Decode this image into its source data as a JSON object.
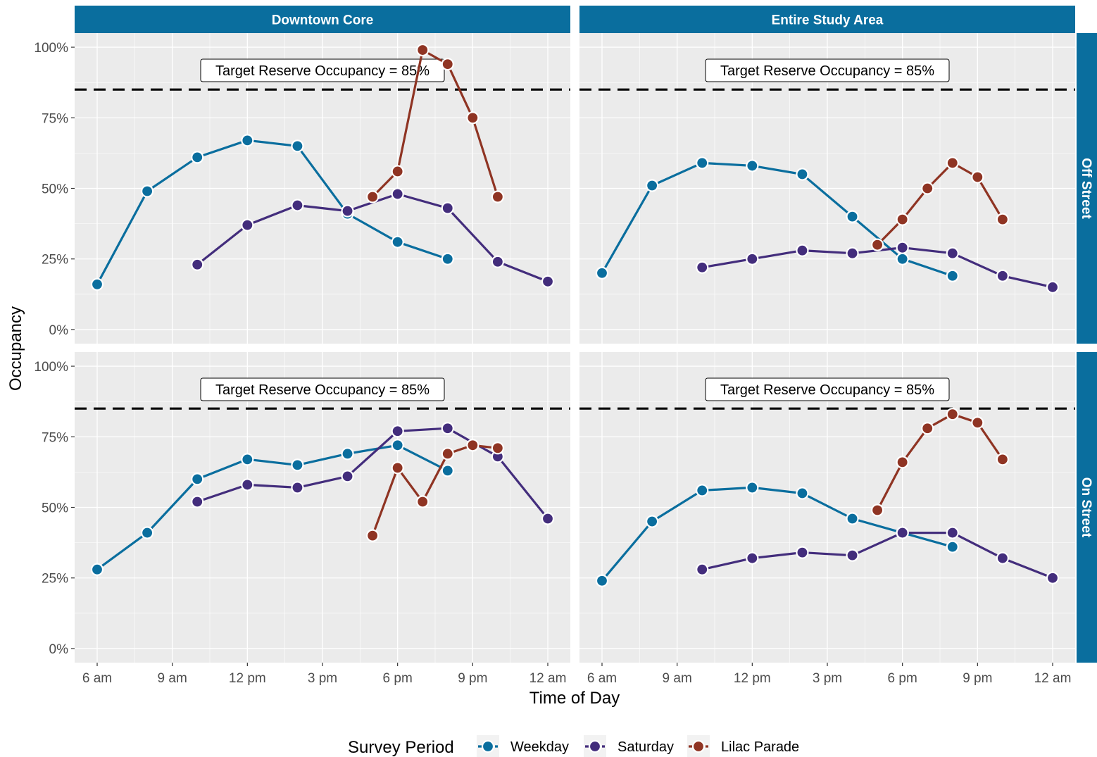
{
  "chart_data": {
    "type": "line",
    "x_axis_label": "Time of Day",
    "y_axis_label": "Occupancy",
    "x_ticks": [
      {
        "hour": 6,
        "label": "6 am"
      },
      {
        "hour": 9,
        "label": "9 am"
      },
      {
        "hour": 12,
        "label": "12 pm"
      },
      {
        "hour": 15,
        "label": "3 pm"
      },
      {
        "hour": 18,
        "label": "6 pm"
      },
      {
        "hour": 21,
        "label": "9 pm"
      },
      {
        "hour": 24,
        "label": "12 am"
      }
    ],
    "y_ticks": [
      {
        "value": 0,
        "label": "0%"
      },
      {
        "value": 25,
        "label": "25%"
      },
      {
        "value": 50,
        "label": "50%"
      },
      {
        "value": 75,
        "label": "75%"
      },
      {
        "value": 100,
        "label": "100%"
      }
    ],
    "x_range": [
      5.1,
      24.9
    ],
    "y_range": [
      -5,
      105
    ],
    "grid": true,
    "reference_line": {
      "value": 85,
      "style": "dashed",
      "label": "Target Reserve Occupancy = 85%"
    },
    "column_facets": [
      "Downtown Core",
      "Entire Study Area"
    ],
    "row_facets": [
      "Off Street",
      "On Street"
    ],
    "legend": {
      "title": "Survey Period",
      "position": "bottom",
      "entries": [
        {
          "name": "Weekday",
          "color": "#0a6e9e"
        },
        {
          "name": "Saturday",
          "color": "#432d7c"
        },
        {
          "name": "Lilac Parade",
          "color": "#8f3423"
        }
      ]
    },
    "panels": [
      {
        "column": "Downtown Core",
        "row": "Off Street",
        "series": [
          {
            "name": "Weekday",
            "x": [
              6,
              8,
              10,
              12,
              14,
              16,
              18,
              20
            ],
            "y": [
              16,
              49,
              61,
              67,
              65,
              41,
              31,
              25
            ]
          },
          {
            "name": "Saturday",
            "x": [
              10,
              12,
              14,
              16,
              18,
              20,
              22,
              24
            ],
            "y": [
              23,
              37,
              44,
              42,
              48,
              43,
              24,
              17
            ]
          },
          {
            "name": "Lilac Parade",
            "x": [
              17,
              18,
              19,
              20,
              21,
              22
            ],
            "y": [
              47,
              56,
              99,
              94,
              75,
              47
            ]
          }
        ]
      },
      {
        "column": "Entire Study Area",
        "row": "Off Street",
        "series": [
          {
            "name": "Weekday",
            "x": [
              6,
              8,
              10,
              12,
              14,
              16,
              18,
              20
            ],
            "y": [
              20,
              51,
              59,
              58,
              55,
              40,
              25,
              19
            ]
          },
          {
            "name": "Saturday",
            "x": [
              10,
              12,
              14,
              16,
              18,
              20,
              22,
              24
            ],
            "y": [
              22,
              25,
              28,
              27,
              29,
              27,
              19,
              15
            ]
          },
          {
            "name": "Lilac Parade",
            "x": [
              17,
              18,
              19,
              20,
              21,
              22
            ],
            "y": [
              30,
              39,
              50,
              59,
              54,
              39
            ]
          }
        ]
      },
      {
        "column": "Downtown Core",
        "row": "On Street",
        "series": [
          {
            "name": "Weekday",
            "x": [
              6,
              8,
              10,
              12,
              14,
              16,
              18,
              20
            ],
            "y": [
              28,
              41,
              60,
              67,
              65,
              69,
              72,
              63
            ]
          },
          {
            "name": "Saturday",
            "x": [
              10,
              12,
              14,
              16,
              18,
              20,
              22,
              24
            ],
            "y": [
              52,
              58,
              57,
              61,
              77,
              78,
              68,
              46
            ]
          },
          {
            "name": "Lilac Parade",
            "x": [
              17,
              18,
              19,
              20,
              21,
              22
            ],
            "y": [
              40,
              64,
              52,
              69,
              72,
              71
            ]
          }
        ]
      },
      {
        "column": "Entire Study Area",
        "row": "On Street",
        "series": [
          {
            "name": "Weekday",
            "x": [
              6,
              8,
              10,
              12,
              14,
              16,
              18,
              20
            ],
            "y": [
              24,
              45,
              56,
              57,
              55,
              46,
              41,
              36
            ]
          },
          {
            "name": "Saturday",
            "x": [
              10,
              12,
              14,
              16,
              18,
              20,
              22,
              24
            ],
            "y": [
              28,
              32,
              34,
              33,
              41,
              41,
              32,
              25
            ]
          },
          {
            "name": "Lilac Parade",
            "x": [
              17,
              18,
              19,
              20,
              21,
              22
            ],
            "y": [
              49,
              66,
              78,
              83,
              80,
              67
            ]
          }
        ]
      }
    ]
  }
}
